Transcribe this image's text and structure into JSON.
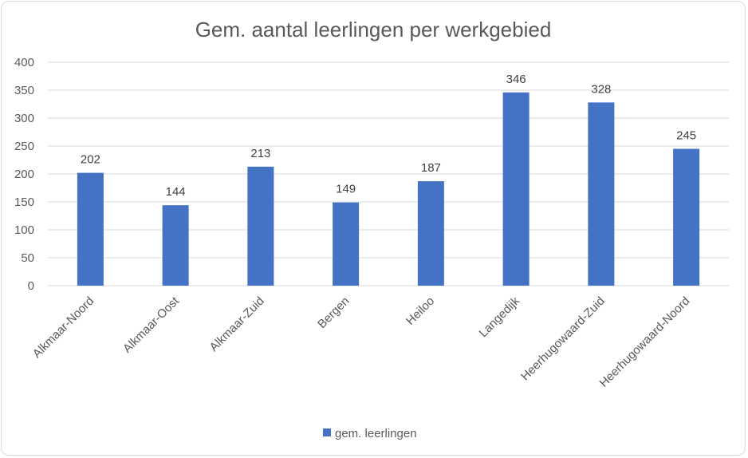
{
  "chart_data": {
    "type": "bar",
    "title": "Gem. aantal leerlingen per werkgebied",
    "xlabel": "",
    "ylabel": "",
    "ylim": [
      0,
      400
    ],
    "yticks": [
      0,
      50,
      100,
      150,
      200,
      250,
      300,
      350,
      400
    ],
    "grid": true,
    "legend_position": "bottom",
    "categories": [
      "Alkmaar-Noord",
      "Alkmaar-Oost",
      "Alkmaar-Zuid",
      "Bergen",
      "Heiloo",
      "Langedijk",
      "Heerhugowaard-Zuid",
      "Heerhugowaard-Noord"
    ],
    "series": [
      {
        "name": "gem. leerlingen",
        "color": "#4472c4",
        "values": [
          202,
          144,
          213,
          149,
          187,
          346,
          328,
          245
        ]
      }
    ]
  }
}
